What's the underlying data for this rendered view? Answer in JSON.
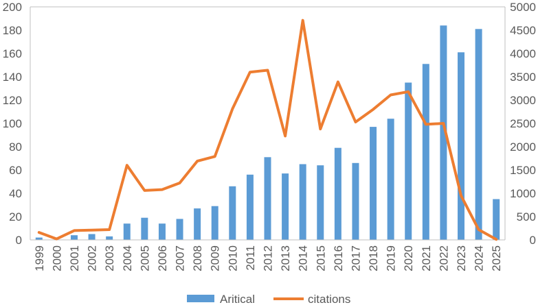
{
  "chart_data": {
    "type": "bar",
    "title": "",
    "xlabel": "",
    "ylabel": "",
    "y2label": "",
    "categories": [
      "1999",
      "2000",
      "2001",
      "2002",
      "2003",
      "2004",
      "2005",
      "2006",
      "2007",
      "2008",
      "2009",
      "2010",
      "2011",
      "2012",
      "2013",
      "2014",
      "2015",
      "2016",
      "2017",
      "2018",
      "2019",
      "2020",
      "2021",
      "2022",
      "2023",
      "2024",
      "2025"
    ],
    "series": [
      {
        "name": "Aritical",
        "type": "bar",
        "axis": "left",
        "color": "#5B9BD5",
        "values": [
          2,
          0,
          4,
          5,
          3,
          14,
          19,
          14,
          18,
          27,
          29,
          46,
          56,
          71,
          57,
          65,
          64,
          79,
          66,
          97,
          104,
          135,
          151,
          184,
          161,
          181,
          35
        ]
      },
      {
        "name": "citations",
        "type": "line",
        "axis": "right",
        "color": "#ED7D31",
        "values": [
          160,
          20,
          200,
          210,
          220,
          1600,
          1060,
          1080,
          1220,
          1690,
          1790,
          2810,
          3600,
          3640,
          2230,
          4710,
          2380,
          3390,
          2530,
          2800,
          3110,
          3180,
          2480,
          2500,
          950,
          220,
          10
        ]
      }
    ],
    "ylim": [
      0,
      200
    ],
    "yticks": [
      0,
      20,
      40,
      60,
      80,
      100,
      120,
      140,
      160,
      180,
      200
    ],
    "y2lim": [
      0,
      5000
    ],
    "y2ticks": [
      0,
      500,
      1000,
      1500,
      2000,
      2500,
      3000,
      3500,
      4000,
      4500,
      5000
    ],
    "legend": "bottom",
    "grid": false
  }
}
